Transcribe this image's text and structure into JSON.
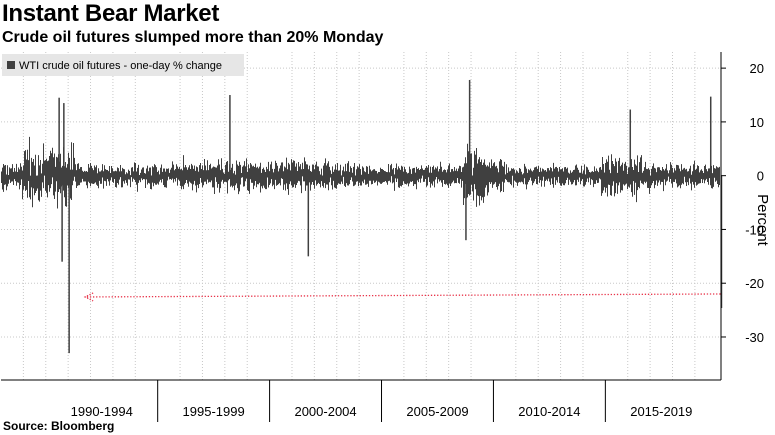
{
  "title": "Instant Bear Market",
  "subtitle": "Crude oil futures slumped more than 20% Monday",
  "source": "Source: Bloomberg",
  "colors": {
    "series": "#404040",
    "arrow": "#e8344a",
    "grid": "#c8c8c8"
  },
  "chart_data": {
    "type": "bar",
    "title": "Instant Bear Market",
    "subtitle": "Crude oil futures slumped more than 20% Monday",
    "ylabel": "Percent",
    "ylim": [
      -38,
      23
    ],
    "yticks": [
      20,
      10,
      0,
      -10,
      -20,
      -30
    ],
    "x_range": [
      "1988-01",
      "2020-03"
    ],
    "categories": [
      "1990-1994",
      "1995-1999",
      "2000-2004",
      "2005-2009",
      "2010-2014",
      "2015-2019"
    ],
    "grid": true,
    "legend": {
      "position": "top-left",
      "entries": [
        "WTI crude oil futures - one-day % change"
      ]
    },
    "series": [
      {
        "name": "WTI crude oil futures - one-day % change",
        "frequency": "daily",
        "notable_values": [
          {
            "date": "1991-01-17",
            "value": -33.0
          },
          {
            "date": "1990-09-24",
            "value": -16.0
          },
          {
            "date": "1990-08-06",
            "value": 14.5
          },
          {
            "date": "1990-10-22",
            "value": 13.5
          },
          {
            "date": "1998-03-23",
            "value": 15.0
          },
          {
            "date": "2001-09-24",
            "value": -15.0
          },
          {
            "date": "2008-12-08",
            "value": 17.8
          },
          {
            "date": "2008-10-09",
            "value": -12.0
          },
          {
            "date": "2016-02-12",
            "value": 12.3
          },
          {
            "date": "2019-09-16",
            "value": 14.7
          },
          {
            "date": "2020-03-09",
            "value": -24.6
          }
        ]
      }
    ],
    "annotations": [
      {
        "type": "arrow",
        "from_date": "2020-03-09",
        "to_date": "1991-01-17",
        "level": -22.0
      }
    ]
  }
}
